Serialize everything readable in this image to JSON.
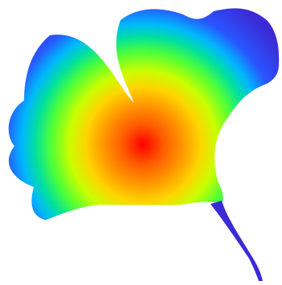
{
  "image": {
    "subject": "ginkgo-leaf",
    "background_color": "#ffffff",
    "gradient_stops": [
      "#ff0000",
      "#ff8800",
      "#ffd400",
      "#a6ff00",
      "#22e86a",
      "#00b6ff",
      "#2a55ff",
      "#3a2bd6"
    ]
  }
}
